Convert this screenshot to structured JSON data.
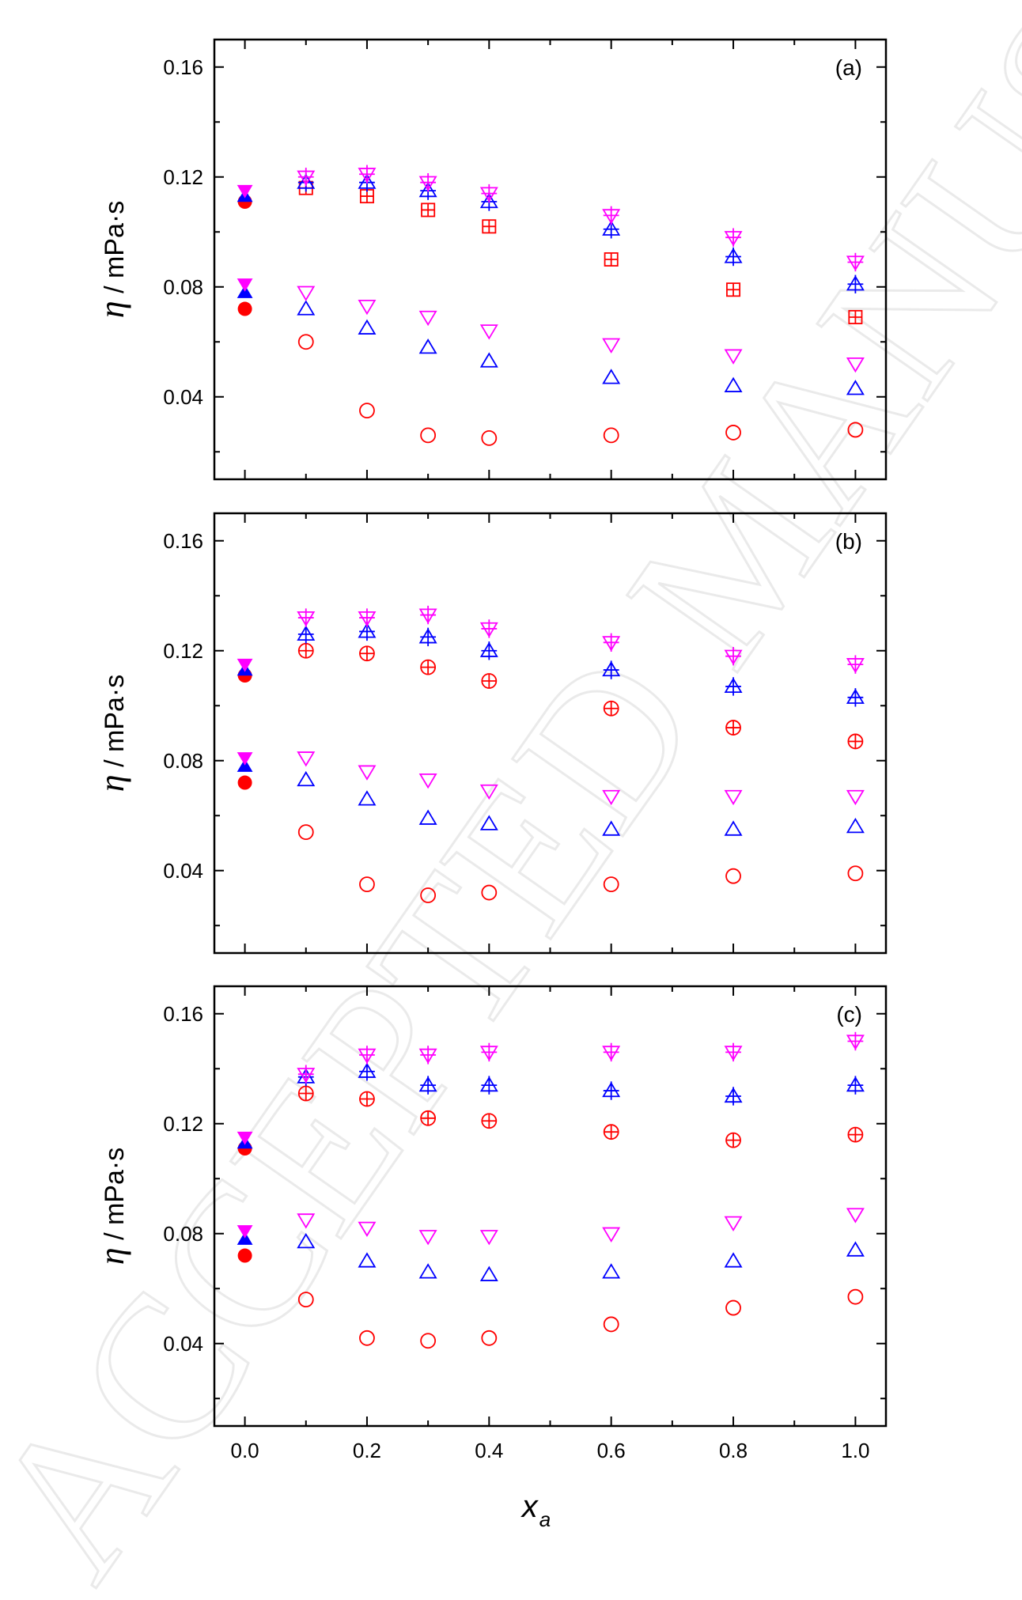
{
  "watermark": "ACCEPTED MANUSCRIPT",
  "colors": {
    "red": "#ff0000",
    "blue": "#0000ff",
    "magenta": "#ff00ff",
    "axis": "#000000"
  },
  "chart_data": [
    {
      "type": "scatter",
      "panel_label": "(a)",
      "xlabel": "x_a",
      "ylabel": "η / mPa·s",
      "xlim": [
        -0.05,
        1.05
      ],
      "ylim": [
        0.01,
        0.17
      ],
      "xticks": [
        "0.0",
        "0.2",
        "0.4",
        "0.6",
        "0.8",
        "1.0"
      ],
      "yticks": [
        "0.04",
        "0.08",
        "0.12",
        "0.16"
      ],
      "show_x_tick_labels": false,
      "series": [
        {
          "marker": "circle-open",
          "color": "red",
          "x": [
            0.1,
            0.2,
            0.3,
            0.4,
            0.6,
            0.8,
            1.0
          ],
          "y": [
            0.06,
            0.035,
            0.026,
            0.025,
            0.026,
            0.027,
            0.028
          ]
        },
        {
          "marker": "triangle-up-open",
          "color": "blue",
          "x": [
            0.1,
            0.2,
            0.3,
            0.4,
            0.6,
            0.8,
            1.0
          ],
          "y": [
            0.072,
            0.065,
            0.058,
            0.053,
            0.047,
            0.044,
            0.043
          ]
        },
        {
          "marker": "triangle-down-open",
          "color": "magenta",
          "x": [
            0.1,
            0.2,
            0.3,
            0.4,
            0.6,
            0.8,
            1.0
          ],
          "y": [
            0.078,
            0.073,
            0.069,
            0.064,
            0.059,
            0.055,
            0.052
          ]
        },
        {
          "marker": "square-plus",
          "color": "red",
          "x": [
            0.1,
            0.2,
            0.3,
            0.4,
            0.6,
            0.8,
            1.0
          ],
          "y": [
            0.116,
            0.113,
            0.108,
            0.102,
            0.09,
            0.079,
            0.069
          ]
        },
        {
          "marker": "triangle-up-plus",
          "color": "blue",
          "x": [
            0.1,
            0.2,
            0.3,
            0.4,
            0.6,
            0.8,
            1.0
          ],
          "y": [
            0.118,
            0.118,
            0.115,
            0.111,
            0.101,
            0.091,
            0.081
          ]
        },
        {
          "marker": "triangle-down-plus",
          "color": "magenta",
          "x": [
            0.1,
            0.2,
            0.3,
            0.4,
            0.6,
            0.8,
            1.0
          ],
          "y": [
            0.12,
            0.121,
            0.118,
            0.114,
            0.106,
            0.098,
            0.089
          ]
        },
        {
          "marker": "circle-filled",
          "color": "red",
          "x": [
            0.0,
            0.0
          ],
          "y": [
            0.072,
            0.111
          ]
        },
        {
          "marker": "triangle-up-filled",
          "color": "blue",
          "x": [
            0.0,
            0.0
          ],
          "y": [
            0.078,
            0.113
          ]
        },
        {
          "marker": "triangle-down-filled",
          "color": "magenta",
          "x": [
            0.0,
            0.0
          ],
          "y": [
            0.081,
            0.115
          ]
        }
      ]
    },
    {
      "type": "scatter",
      "panel_label": "(b)",
      "xlabel": "x_a",
      "ylabel": "η / mPa·s",
      "xlim": [
        -0.05,
        1.05
      ],
      "ylim": [
        0.01,
        0.17
      ],
      "xticks": [
        "0.0",
        "0.2",
        "0.4",
        "0.6",
        "0.8",
        "1.0"
      ],
      "yticks": [
        "0.04",
        "0.08",
        "0.12",
        "0.16"
      ],
      "show_x_tick_labels": false,
      "series": [
        {
          "marker": "circle-open",
          "color": "red",
          "x": [
            0.1,
            0.2,
            0.3,
            0.4,
            0.6,
            0.8,
            1.0
          ],
          "y": [
            0.054,
            0.035,
            0.031,
            0.032,
            0.035,
            0.038,
            0.039
          ]
        },
        {
          "marker": "triangle-up-open",
          "color": "blue",
          "x": [
            0.1,
            0.2,
            0.3,
            0.4,
            0.6,
            0.8,
            1.0
          ],
          "y": [
            0.073,
            0.066,
            0.059,
            0.057,
            0.055,
            0.055,
            0.056
          ]
        },
        {
          "marker": "triangle-down-open",
          "color": "magenta",
          "x": [
            0.1,
            0.2,
            0.3,
            0.4,
            0.6,
            0.8,
            1.0
          ],
          "y": [
            0.081,
            0.076,
            0.073,
            0.069,
            0.067,
            0.067,
            0.067
          ]
        },
        {
          "marker": "circle-plus",
          "color": "red",
          "x": [
            0.1,
            0.2,
            0.3,
            0.4,
            0.6,
            0.8,
            1.0
          ],
          "y": [
            0.12,
            0.119,
            0.114,
            0.109,
            0.099,
            0.092,
            0.087
          ]
        },
        {
          "marker": "triangle-up-plus",
          "color": "blue",
          "x": [
            0.1,
            0.2,
            0.3,
            0.4,
            0.6,
            0.8,
            1.0
          ],
          "y": [
            0.126,
            0.127,
            0.125,
            0.12,
            0.113,
            0.107,
            0.103
          ]
        },
        {
          "marker": "triangle-down-plus",
          "color": "magenta",
          "x": [
            0.1,
            0.2,
            0.3,
            0.4,
            0.6,
            0.8,
            1.0
          ],
          "y": [
            0.132,
            0.132,
            0.133,
            0.128,
            0.123,
            0.118,
            0.115
          ]
        },
        {
          "marker": "circle-filled",
          "color": "red",
          "x": [
            0.0,
            0.0
          ],
          "y": [
            0.072,
            0.111
          ]
        },
        {
          "marker": "triangle-up-filled",
          "color": "blue",
          "x": [
            0.0,
            0.0
          ],
          "y": [
            0.078,
            0.113
          ]
        },
        {
          "marker": "triangle-down-filled",
          "color": "magenta",
          "x": [
            0.0,
            0.0
          ],
          "y": [
            0.081,
            0.115
          ]
        }
      ]
    },
    {
      "type": "scatter",
      "panel_label": "(c)",
      "xlabel": "x_a",
      "ylabel": "η / mPa·s",
      "xlim": [
        -0.05,
        1.05
      ],
      "ylim": [
        0.01,
        0.17
      ],
      "xticks": [
        "0.0",
        "0.2",
        "0.4",
        "0.6",
        "0.8",
        "1.0"
      ],
      "yticks": [
        "0.04",
        "0.08",
        "0.12",
        "0.16"
      ],
      "show_x_tick_labels": true,
      "series": [
        {
          "marker": "circle-open",
          "color": "red",
          "x": [
            0.1,
            0.2,
            0.3,
            0.4,
            0.6,
            0.8,
            1.0
          ],
          "y": [
            0.056,
            0.042,
            0.041,
            0.042,
            0.047,
            0.053,
            0.057
          ]
        },
        {
          "marker": "triangle-up-open",
          "color": "blue",
          "x": [
            0.1,
            0.2,
            0.3,
            0.4,
            0.6,
            0.8,
            1.0
          ],
          "y": [
            0.077,
            0.07,
            0.066,
            0.065,
            0.066,
            0.07,
            0.074
          ]
        },
        {
          "marker": "triangle-down-open",
          "color": "magenta",
          "x": [
            0.1,
            0.2,
            0.3,
            0.4,
            0.6,
            0.8,
            1.0
          ],
          "y": [
            0.085,
            0.082,
            0.079,
            0.079,
            0.08,
            0.084,
            0.087
          ]
        },
        {
          "marker": "circle-plus",
          "color": "red",
          "x": [
            0.1,
            0.2,
            0.3,
            0.4,
            0.6,
            0.8,
            1.0
          ],
          "y": [
            0.131,
            0.129,
            0.122,
            0.121,
            0.117,
            0.114,
            0.116
          ]
        },
        {
          "marker": "triangle-up-plus",
          "color": "blue",
          "x": [
            0.1,
            0.2,
            0.3,
            0.4,
            0.6,
            0.8,
            1.0
          ],
          "y": [
            0.137,
            0.139,
            0.134,
            0.134,
            0.132,
            0.13,
            0.134
          ]
        },
        {
          "marker": "triangle-down-plus",
          "color": "magenta",
          "x": [
            0.1,
            0.2,
            0.3,
            0.4,
            0.6,
            0.8,
            1.0
          ],
          "y": [
            0.138,
            0.145,
            0.145,
            0.146,
            0.146,
            0.146,
            0.15
          ]
        },
        {
          "marker": "circle-filled",
          "color": "red",
          "x": [
            0.0,
            0.0
          ],
          "y": [
            0.072,
            0.111
          ]
        },
        {
          "marker": "triangle-up-filled",
          "color": "blue",
          "x": [
            0.0,
            0.0
          ],
          "y": [
            0.078,
            0.113
          ]
        },
        {
          "marker": "triangle-down-filled",
          "color": "magenta",
          "x": [
            0.0,
            0.0
          ],
          "y": [
            0.081,
            0.115
          ]
        }
      ]
    }
  ]
}
